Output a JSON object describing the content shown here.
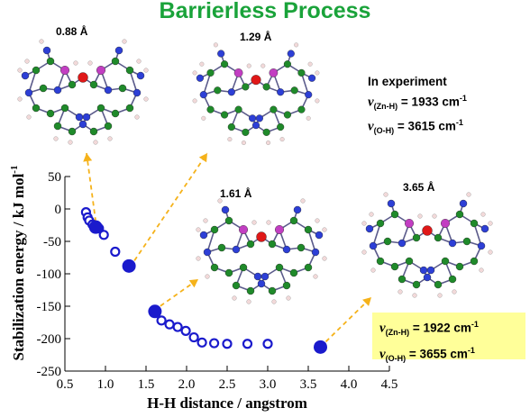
{
  "title": "Barrierless Process",
  "colors": {
    "title": "#1aa33a",
    "points": "#1a1acc",
    "arrow": "#f5b21a",
    "box": "#ffff99"
  },
  "structure_labels": [
    "0.88 Å",
    "1.29 Å",
    "1.61 Å",
    "3.65 Å"
  ],
  "experiment": {
    "heading": "In experiment",
    "nu": "ν",
    "zn_sub": "(Zn-H)",
    "zn_val": " = 1933 cm",
    "oh_sub": "(O-H)",
    "oh_val": " = 3615 cm",
    "sup": "-1"
  },
  "calculated": {
    "nu": "ν",
    "zn_sub": "(Zn-H)",
    "zn_val": " = 1922 cm",
    "oh_sub": "(O-H)",
    "oh_val": " = 3655 cm",
    "sup": "-1"
  },
  "chart_data": {
    "type": "scatter",
    "xlabel": "H-H distance / angstrom",
    "ylabel": "Stabilization energy / kJ mol",
    "ylabel_sup": "-1",
    "xlim": [
      0.5,
      4.5
    ],
    "ylim": [
      -250,
      50
    ],
    "xticks": [
      0.5,
      1.0,
      1.5,
      2.0,
      2.5,
      3.0,
      3.5,
      4.0,
      4.5
    ],
    "xtick_labels": [
      "0.5",
      "1.0",
      "1.5",
      "2.0",
      "2.5",
      "3.0",
      "3.5",
      "4.0",
      "4.5"
    ],
    "yticks": [
      50,
      0,
      -50,
      -100,
      -150,
      -200,
      -250
    ],
    "ytick_labels": [
      "50",
      "0",
      "-50",
      "-100",
      "-150",
      "-200",
      "-250"
    ],
    "series": [
      {
        "marker": "open-circle",
        "x": [
          0.76,
          0.78,
          0.8,
          0.84,
          0.92,
          0.98,
          1.12,
          1.69,
          1.79,
          1.89,
          1.99,
          2.09,
          2.19,
          2.34,
          2.5,
          2.75,
          3.0
        ],
        "y": [
          -5,
          -13,
          -18,
          -24,
          -30,
          -40,
          -66,
          -172,
          -178,
          -182,
          -188,
          -198,
          -206,
          -207,
          -208,
          -208,
          -208
        ]
      },
      {
        "marker": "filled-circle",
        "x": [
          0.88,
          1.29,
          1.61,
          3.65
        ],
        "y": [
          -28,
          -88,
          -158,
          -213
        ]
      }
    ]
  }
}
